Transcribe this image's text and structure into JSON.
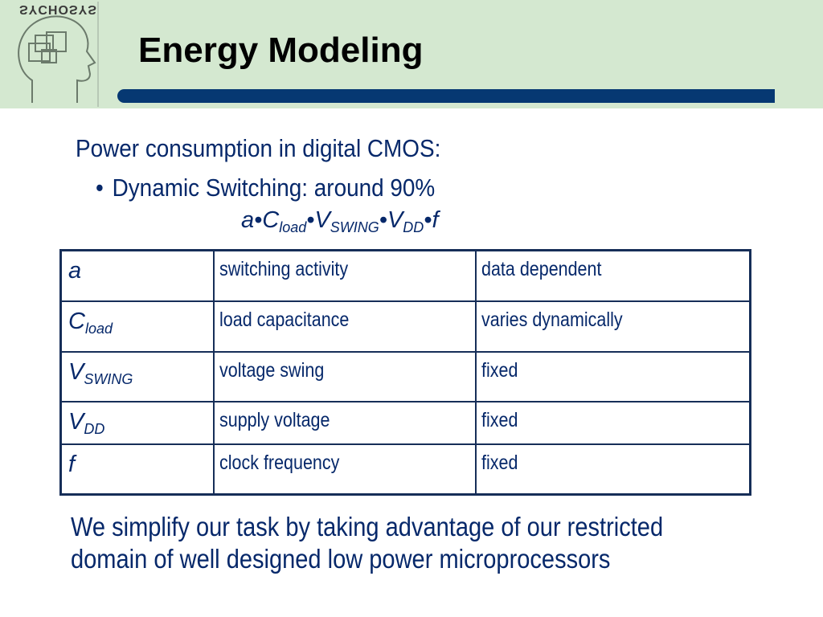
{
  "header": {
    "logo_text": "SYCHOSYS",
    "title": "Energy Modeling"
  },
  "intro": {
    "line": "Power consumption in digital CMOS:",
    "bullet": "Dynamic Switching: around 90%"
  },
  "formula": {
    "a": "a",
    "sep": "•",
    "c": "C",
    "c_sub": "load",
    "v1": "V",
    "v1_sub": "SWING",
    "v2": "V",
    "v2_sub": "DD",
    "f": "f"
  },
  "table": {
    "rows": [
      {
        "symbol": "a",
        "sub": "",
        "description": "switching activity",
        "note": "data dependent"
      },
      {
        "symbol": "C",
        "sub": "load",
        "description": "load capacitance",
        "note": "varies dynamically"
      },
      {
        "symbol": "V",
        "sub": "SWING",
        "description": "voltage swing",
        "note": "fixed"
      },
      {
        "symbol": "V",
        "sub": "DD",
        "description": "supply voltage",
        "note": "fixed"
      },
      {
        "symbol": "f",
        "sub": "",
        "description": "clock frequency",
        "note": "fixed"
      }
    ]
  },
  "footer": {
    "text": "We simplify our task by taking advantage of our restricted domain of well designed low power microprocessors"
  },
  "colors": {
    "header_bg": "#d4e8d0",
    "accent_bar": "#063872",
    "text_blue": "#06286a"
  }
}
